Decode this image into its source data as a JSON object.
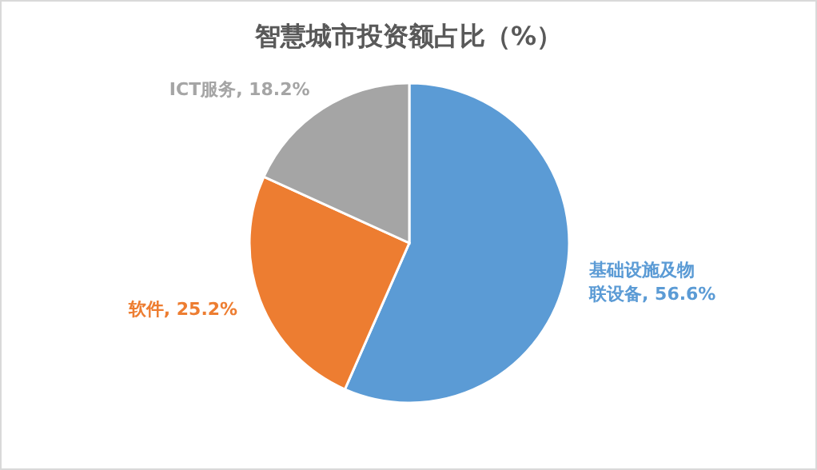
{
  "chart_data": {
    "type": "pie",
    "title": "智慧城市投资额占比（%）",
    "categories": [
      "基础设施及物联设备",
      "软件",
      "ICT服务"
    ],
    "values": [
      56.6,
      25.2,
      18.2
    ],
    "value_labels": [
      "56.6%",
      "25.2%",
      "18.2%"
    ],
    "colors": [
      "#5b9bd5",
      "#ed7d31",
      "#a5a5a5"
    ],
    "legend": false
  }
}
